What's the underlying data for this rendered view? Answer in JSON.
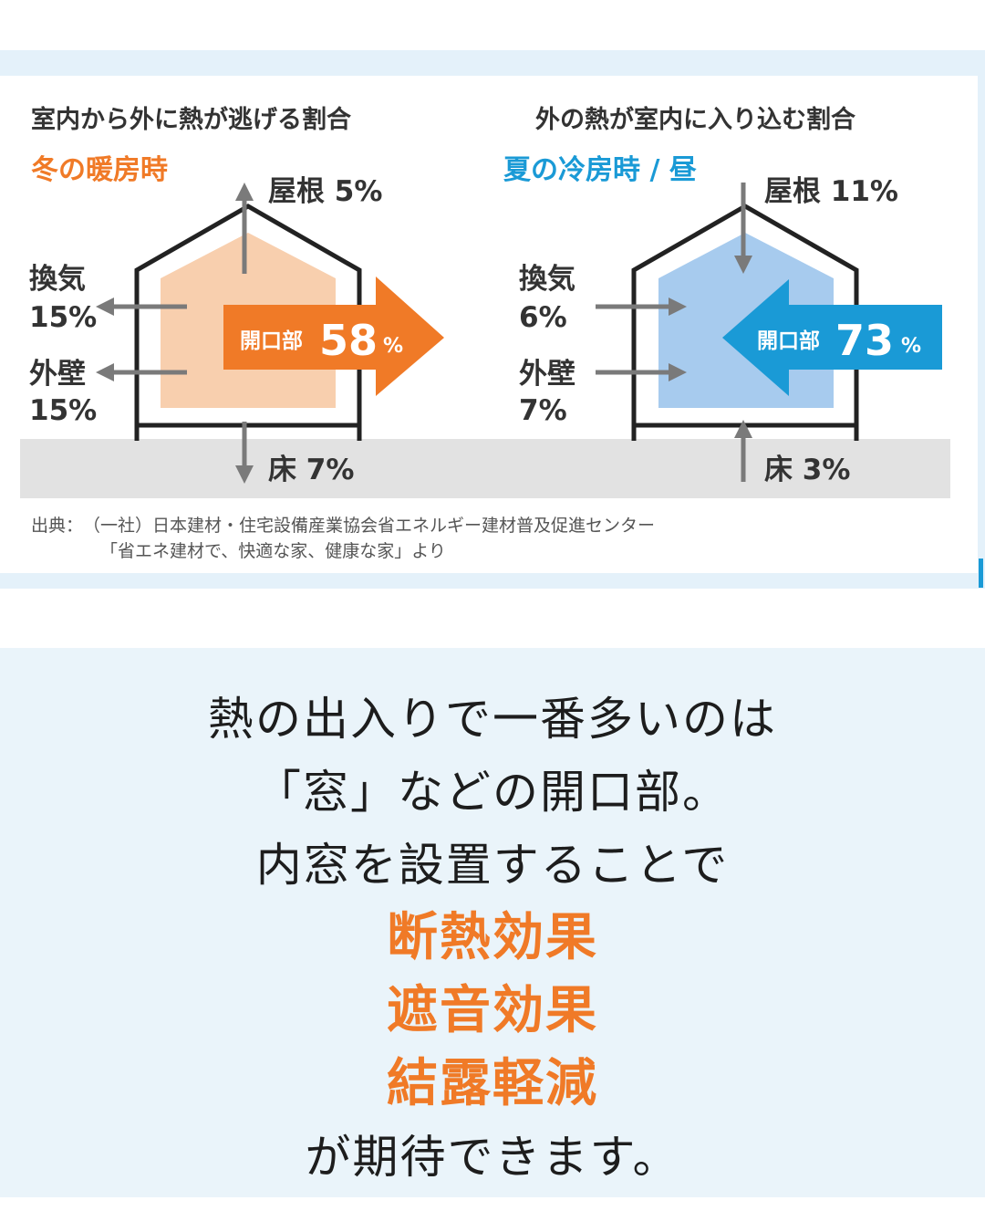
{
  "winter": {
    "heading": "室内から外に熱が逃げる割合",
    "season": "冬の暖房時",
    "roof": "屋根 5%",
    "vent_label": "換気",
    "vent_value": "15%",
    "wall_label": "外壁",
    "wall_value": "15%",
    "floor": "床 7%",
    "opening_label": "開口部",
    "opening_value": "58",
    "opening_unit": "%"
  },
  "summer": {
    "heading": "外の熱が室内に入り込む割合",
    "season": "夏の冷房時 / 昼",
    "roof": "屋根 11%",
    "vent_label": "換気",
    "vent_value": "6%",
    "wall_label": "外壁",
    "wall_value": "7%",
    "floor": "床 3%",
    "opening_label": "開口部",
    "opening_value": "73",
    "opening_unit": "%"
  },
  "source": {
    "line1": "出典：　（一社）日本建材・住宅設備産業協会省エネルギー建材普及促進センター",
    "line2": "「省エネ建材で、快適な家、健康な家」より"
  },
  "message": {
    "line1": "熱の出入りで一番多いのは",
    "line2": "「窓」などの開口部。",
    "line3": "内窓を設置することで",
    "benefit1": "断熱効果",
    "benefit2": "遮音効果",
    "benefit3": "結露軽減",
    "line4": "が期待できます。"
  },
  "colors": {
    "orange": "#f07a27",
    "orange_fill": "#f8cfae",
    "blue": "#1a9ad6",
    "blue_fill": "#a7cbee",
    "ground": "#e2e2e2",
    "arrow_gray": "#7a7a7a"
  }
}
